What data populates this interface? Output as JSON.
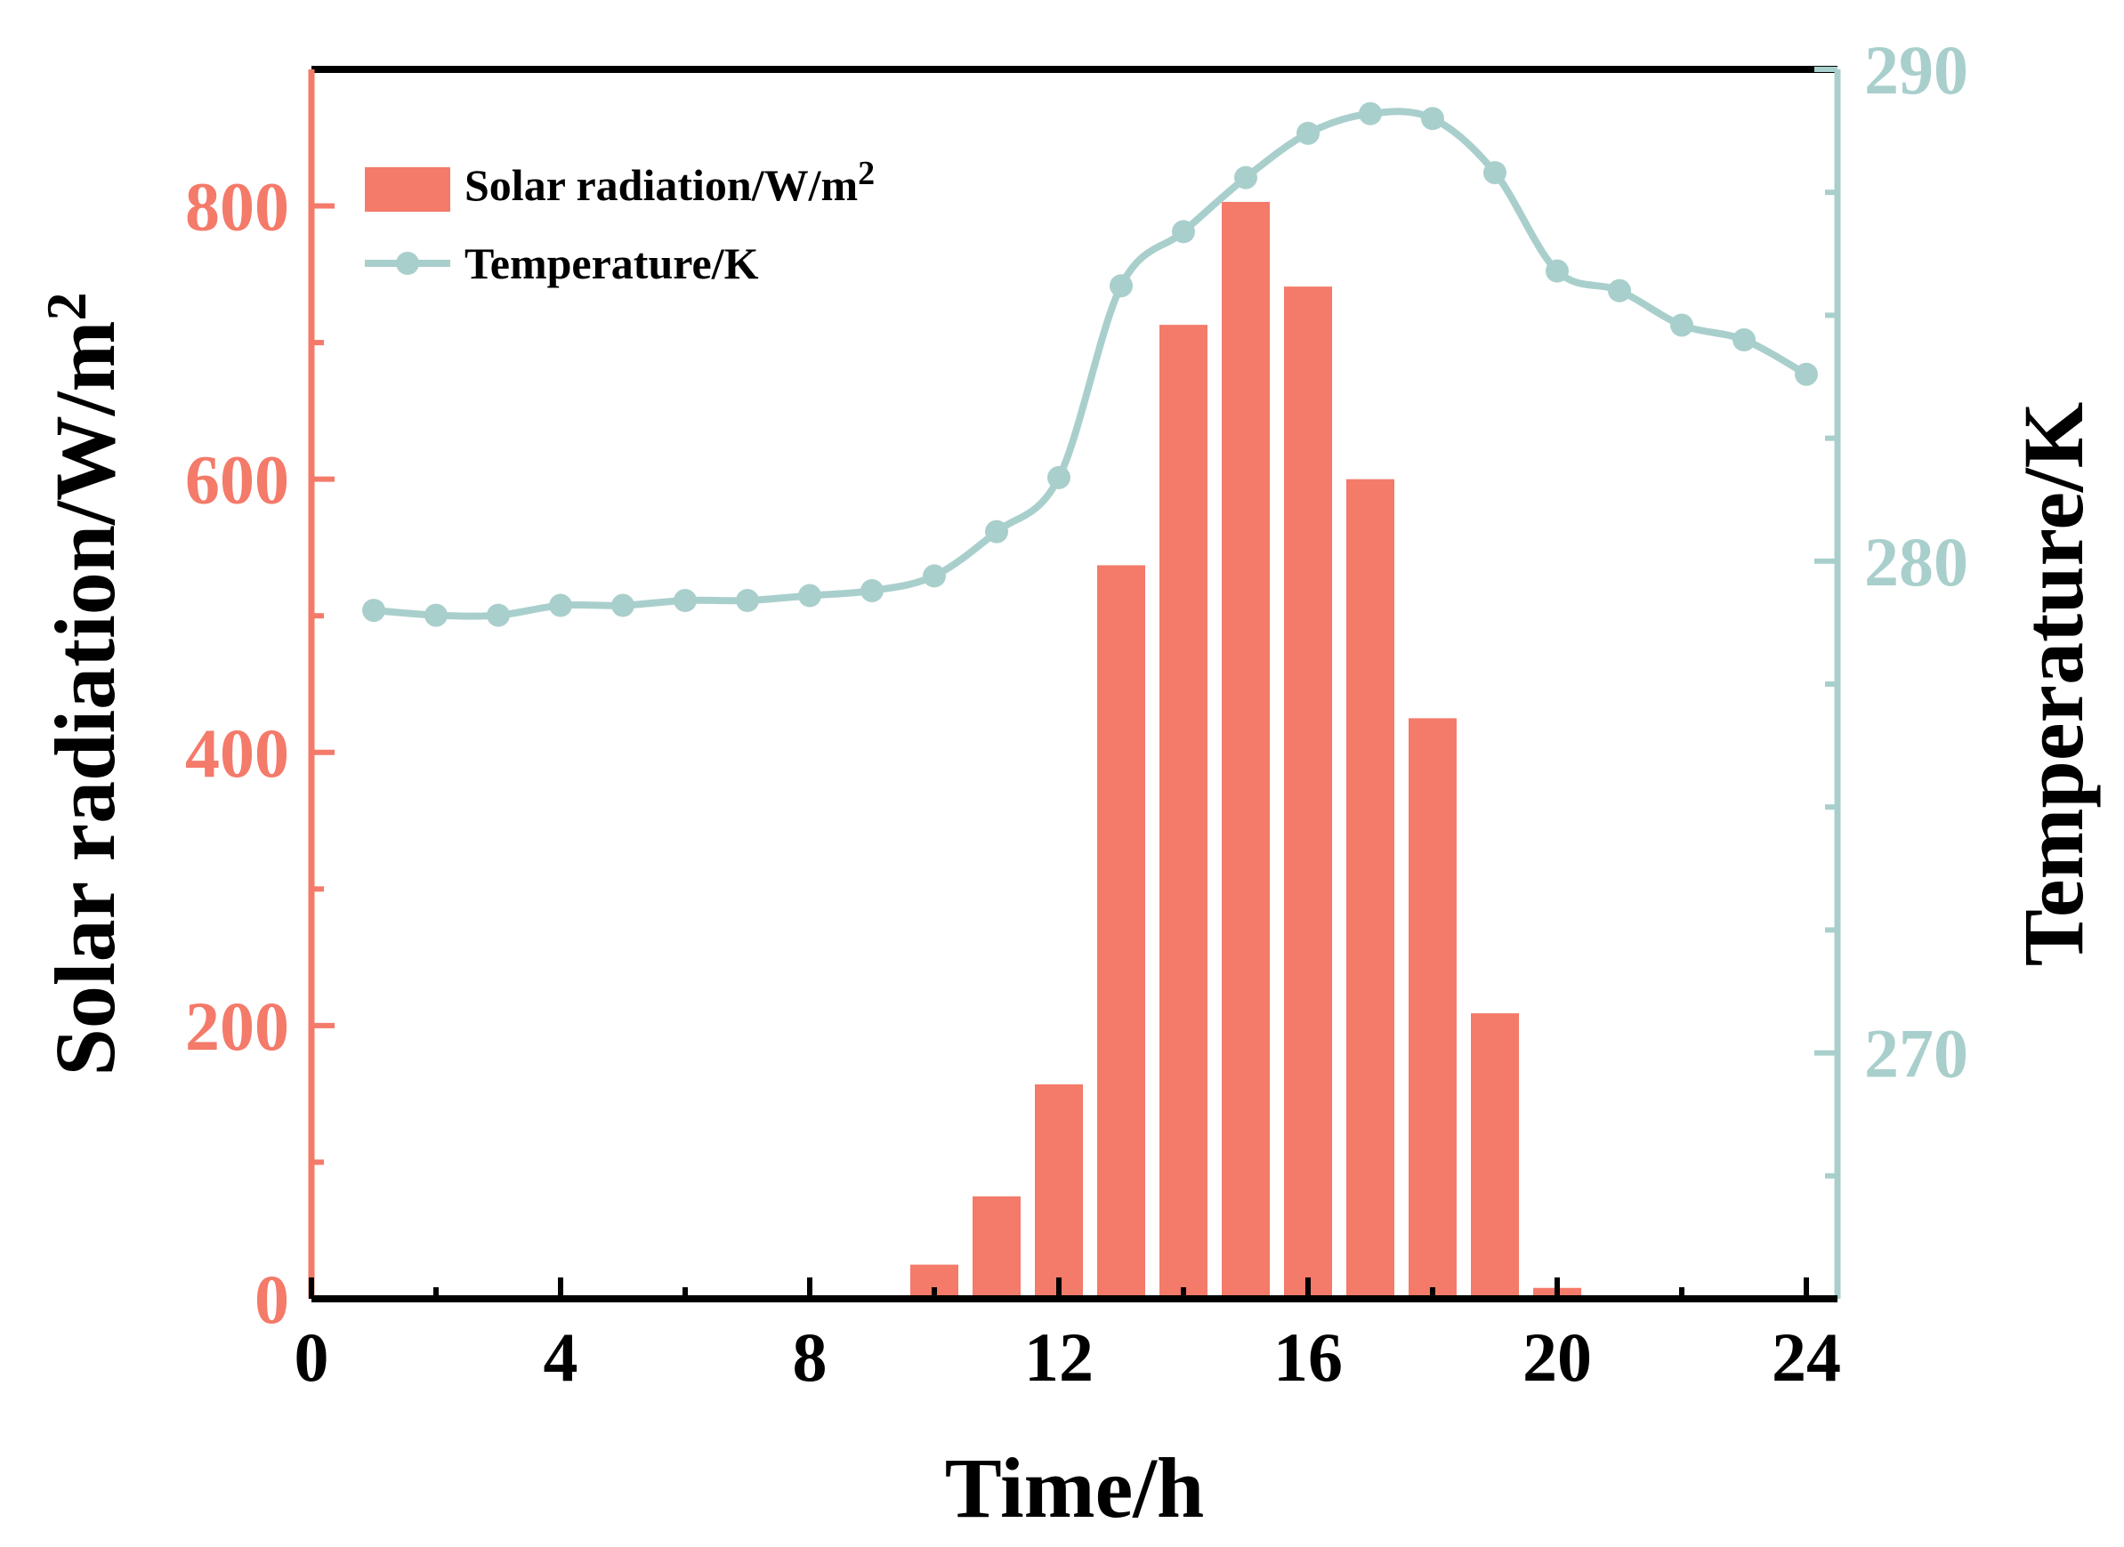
{
  "chart_data": {
    "type": "bar+line",
    "xlabel": "Time/h",
    "ylabel_left": {
      "base": "Solar radiation/W/m",
      "sup": "2"
    },
    "ylabel_right": "Temperature/K",
    "xlim": [
      0,
      24.5
    ],
    "ylim_left": [
      0,
      900
    ],
    "ylim_right": [
      265,
      290
    ],
    "x_ticks": [
      "0",
      "4",
      "8",
      "12",
      "16",
      "20",
      "24"
    ],
    "y_left_ticks": [
      "0",
      "200",
      "400",
      "600",
      "800"
    ],
    "y_right_ticks": [
      "270",
      "280",
      "290"
    ],
    "series": [
      {
        "name": "Solar radiation/W/m",
        "name_sup": "2",
        "type": "bar",
        "axis": "left",
        "color": "#F47A6A",
        "x": [
          10,
          11,
          12,
          13,
          14,
          15,
          16,
          17,
          18,
          19,
          20
        ],
        "values": [
          25,
          75,
          157,
          537,
          713,
          803,
          741,
          600,
          425,
          209,
          8
        ]
      },
      {
        "name": "Temperature/K",
        "type": "line",
        "axis": "right",
        "color": "#A9CFCC",
        "x": [
          1,
          2,
          3,
          4,
          5,
          6,
          7,
          8,
          9,
          10,
          11,
          12,
          13,
          14,
          15,
          16,
          17,
          18,
          19,
          20,
          21,
          22,
          23,
          24
        ],
        "values": [
          279.0,
          278.9,
          278.9,
          279.1,
          279.1,
          279.2,
          279.2,
          279.3,
          279.4,
          279.7,
          280.6,
          281.7,
          285.6,
          286.7,
          287.8,
          288.7,
          289.1,
          289.0,
          287.9,
          285.9,
          285.5,
          284.8,
          284.5,
          283.8
        ]
      }
    ],
    "legend_position": "top-left",
    "colors": {
      "left_axis": "#F47A6A",
      "right_axis": "#A9CFCC",
      "frame": "#000000"
    }
  }
}
